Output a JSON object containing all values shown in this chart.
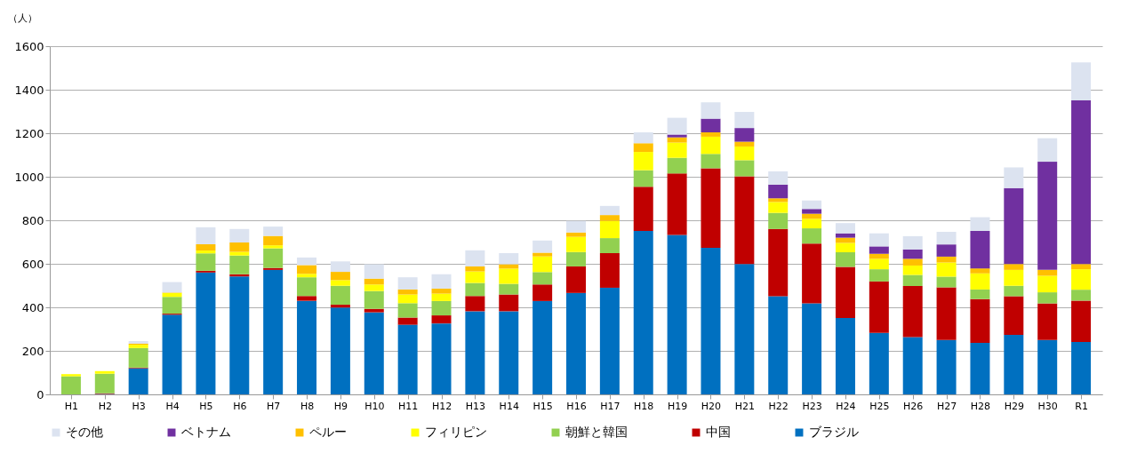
{
  "chart_data": {
    "type": "bar",
    "stacked": true,
    "ylabel": "（人）",
    "ylim": [
      0,
      1600
    ],
    "yticks": [
      0,
      200,
      400,
      600,
      800,
      1000,
      1200,
      1400,
      1600
    ],
    "grid": "y",
    "legend": "bottom",
    "categories": [
      "H1",
      "H2",
      "H3",
      "H4",
      "H5",
      "H6",
      "H7",
      "H8",
      "H9",
      "H10",
      "H11",
      "H12",
      "H13",
      "H14",
      "H15",
      "H16",
      "H17",
      "H18",
      "H19",
      "H20",
      "H21",
      "H22",
      "H23",
      "H24",
      "H25",
      "H26",
      "H27",
      "H28",
      "H29",
      "H30",
      "R1"
    ],
    "series": [
      {
        "name": "ブラジル",
        "color": "#0070c0",
        "values": [
          0,
          2,
          120,
          366,
          560,
          542,
          572,
          430,
          399,
          377,
          320,
          326,
          382,
          382,
          429,
          466,
          490,
          751,
          733,
          673,
          599,
          451,
          418,
          351,
          283,
          263,
          250,
          237,
          273,
          250,
          241
        ]
      },
      {
        "name": "中国",
        "color": "#c00000",
        "values": [
          null,
          3,
          3,
          5,
          8,
          10,
          9,
          22,
          13,
          16,
          33,
          37,
          70,
          77,
          76,
          122,
          159,
          203,
          282,
          366,
          403,
          309,
          275,
          235,
          236,
          235,
          242,
          201,
          178,
          168,
          190
        ]
      },
      {
        "name": "朝鮮と韓国",
        "color": "#92d050",
        "values": [
          83,
          90,
          90,
          77,
          80,
          86,
          90,
          86,
          87,
          82,
          66,
          66,
          60,
          49,
          57,
          66,
          69,
          76,
          72,
          66,
          74,
          74,
          70,
          67,
          56,
          51,
          49,
          44,
          48,
          51,
          50
        ]
      },
      {
        "name": "フィリピン",
        "color": "#ffff00",
        "values": [
          10,
          12,
          15,
          18,
          13,
          17,
          14,
          16,
          26,
          30,
          40,
          34,
          53,
          70,
          72,
          70,
          79,
          84,
          70,
          79,
          63,
          50,
          44,
          43,
          48,
          43,
          65,
          74,
          73,
          76,
          94
        ]
      },
      {
        "name": "ペルー",
        "color": "#ffc000",
        "values": [
          0,
          0,
          5,
          2,
          29,
          43,
          43,
          40,
          38,
          27,
          23,
          23,
          23,
          20,
          17,
          20,
          27,
          40,
          24,
          20,
          22,
          17,
          23,
          24,
          23,
          31,
          27,
          23,
          27,
          27,
          24
        ]
      },
      {
        "name": "ベトナム",
        "color": "#7030a0",
        "values": [
          0,
          0,
          0,
          0,
          0,
          0,
          0,
          0,
          0,
          0,
          0,
          0,
          0,
          0,
          0,
          0,
          0,
          0,
          13,
          63,
          63,
          63,
          22,
          20,
          34,
          43,
          56,
          172,
          349,
          497,
          752
        ]
      },
      {
        "name": "その他",
        "color": "#dce3f0",
        "values": [
          null,
          null,
          12,
          48,
          78,
          62,
          43,
          35,
          48,
          66,
          56,
          66,
          74,
          51,
          56,
          53,
          42,
          50,
          77,
          75,
          74,
          61,
          39,
          47,
          60,
          61,
          58,
          63,
          95,
          108,
          175
        ]
      }
    ]
  }
}
